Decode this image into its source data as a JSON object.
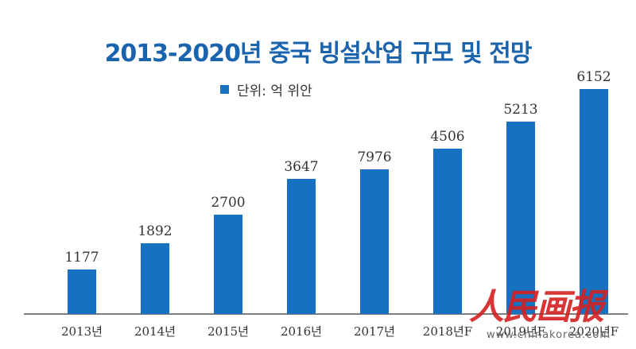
{
  "chart_data": {
    "type": "bar",
    "title": "2013-2020년 중국 빙설산업 규모 및 전망",
    "legend": {
      "label": "단위: 억 위안",
      "placement": "top-left"
    },
    "categories": [
      "2013년",
      "2014년",
      "2015년",
      "2016년",
      "2017년",
      "2018년F",
      "2019년F",
      "2020년F"
    ],
    "values": [
      1177,
      1892,
      2700,
      3647,
      7976,
      4506,
      5213,
      6152
    ],
    "bar_color": "#1672c0",
    "xlabel": "",
    "ylabel": "",
    "grid": false
  },
  "watermark": {
    "text": "人民画报",
    "url": "www.chinakorea.com"
  }
}
